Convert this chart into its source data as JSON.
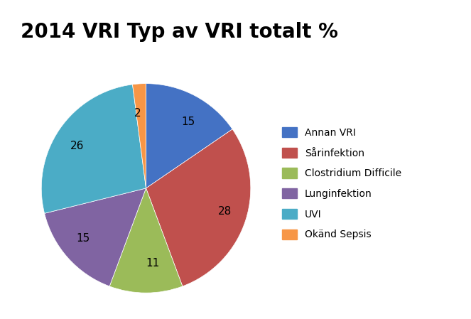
{
  "title": "2014 VRI Typ av VRI totalt %",
  "slices": [
    15,
    28,
    11,
    15,
    26,
    2
  ],
  "labels": [
    "15",
    "28",
    "11",
    "15",
    "26",
    "2"
  ],
  "legend_labels": [
    "Annan VRI",
    "Sårinfektion",
    "Clostridium Difficile",
    "Lunginfektion",
    "UVI",
    "Okänd Sepsis"
  ],
  "colors": [
    "#4472C4",
    "#C0504D",
    "#9BBB59",
    "#8064A2",
    "#4BACC6",
    "#F79646"
  ],
  "startangle": 90,
  "title_fontsize": 20,
  "label_fontsize": 11
}
